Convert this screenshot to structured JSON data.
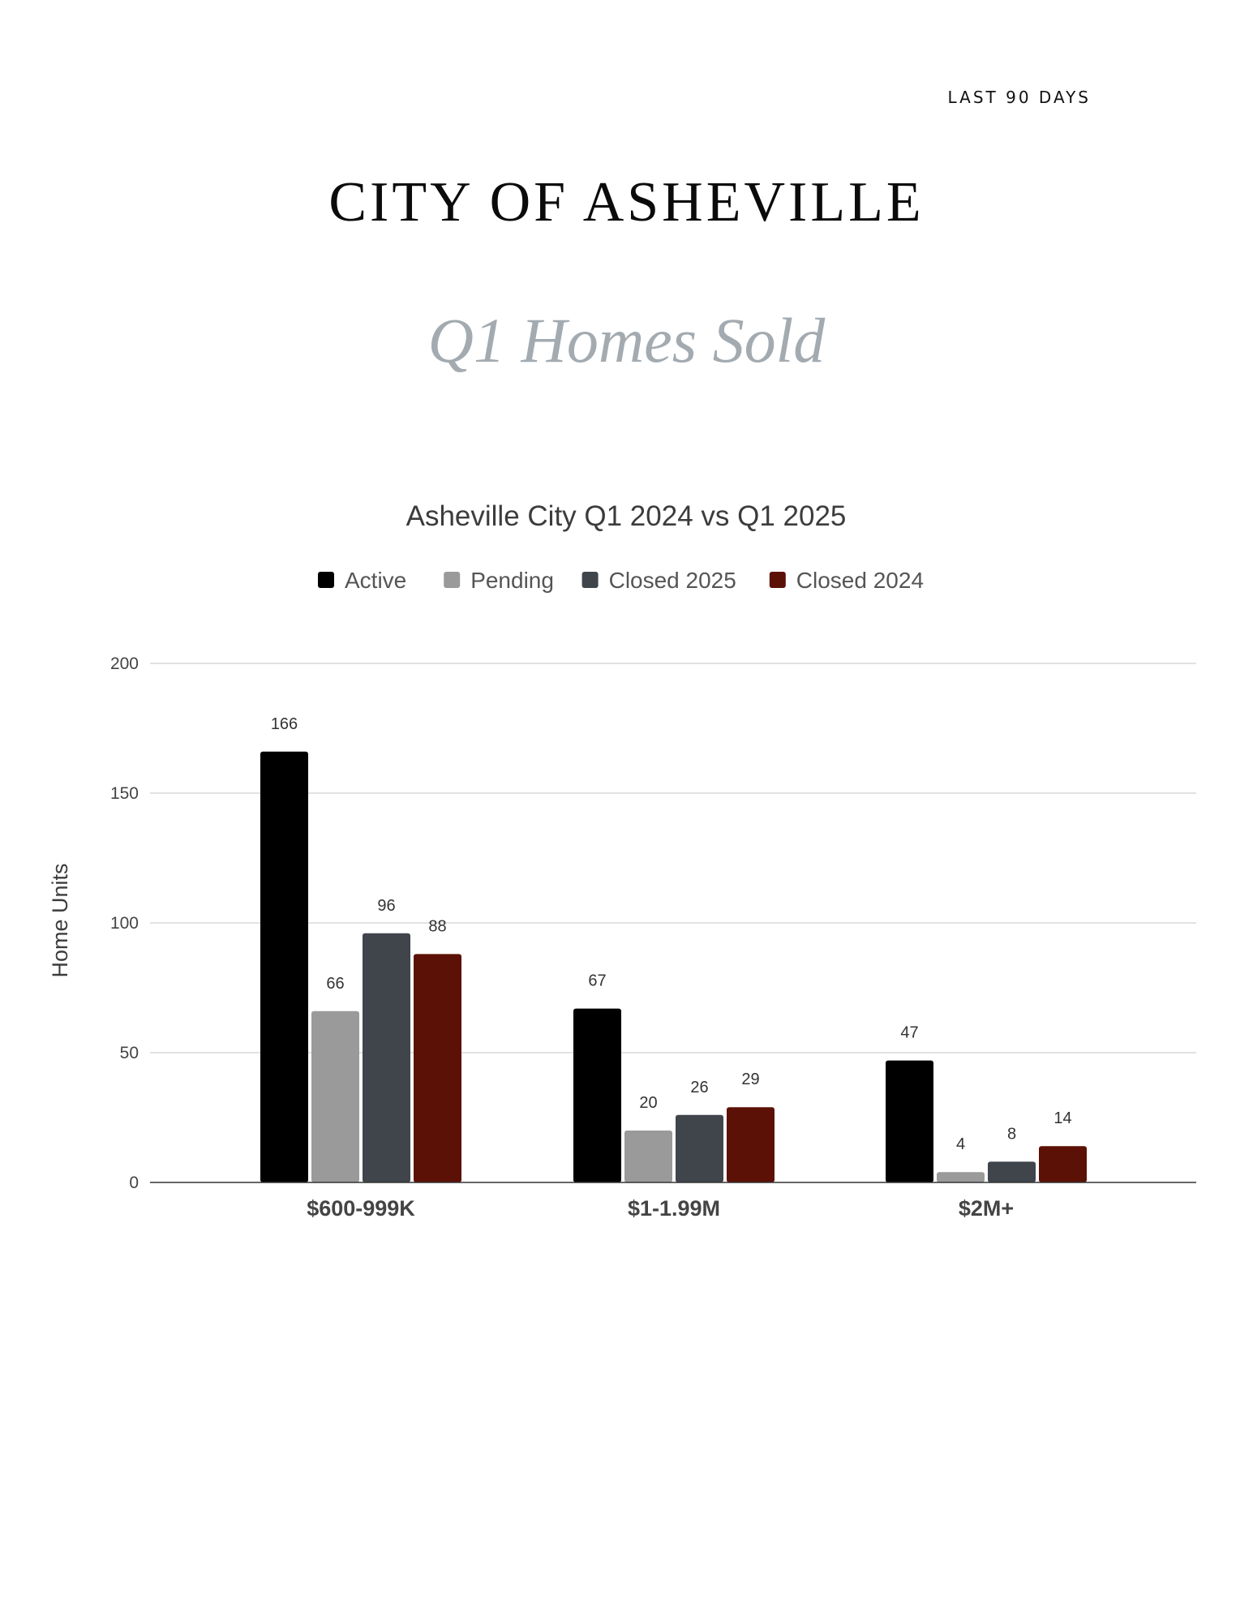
{
  "header": {
    "period": "LAST 90 DAYS",
    "city": "CITY OF ASHEVILLE",
    "subtitle": "Q1 Homes Sold"
  },
  "colors": {
    "active": "#000000",
    "pending": "#9a9a9a",
    "closed_2025": "#40454c",
    "closed_2024": "#5c1106",
    "subtitle": "#a3abb1"
  },
  "chart_data": {
    "type": "bar",
    "title": "Asheville City Q1 2024 vs Q1 2025",
    "xlabel": "",
    "ylabel": "Home Units",
    "ylim": [
      0,
      200
    ],
    "yticks": [
      0,
      50,
      100,
      150,
      200
    ],
    "grid": true,
    "legend": "top-center",
    "categories": [
      "$600-999K",
      "$1-1.99M",
      "$2M+"
    ],
    "series": [
      {
        "name": "Active",
        "color": "#000000",
        "values": [
          166,
          67,
          47
        ]
      },
      {
        "name": "Pending",
        "color": "#9a9a9a",
        "values": [
          66,
          20,
          4
        ]
      },
      {
        "name": "Closed 2025",
        "color": "#40454c",
        "values": [
          96,
          26,
          8
        ]
      },
      {
        "name": "Closed 2024",
        "color": "#5c1106",
        "values": [
          88,
          29,
          14
        ]
      }
    ]
  }
}
